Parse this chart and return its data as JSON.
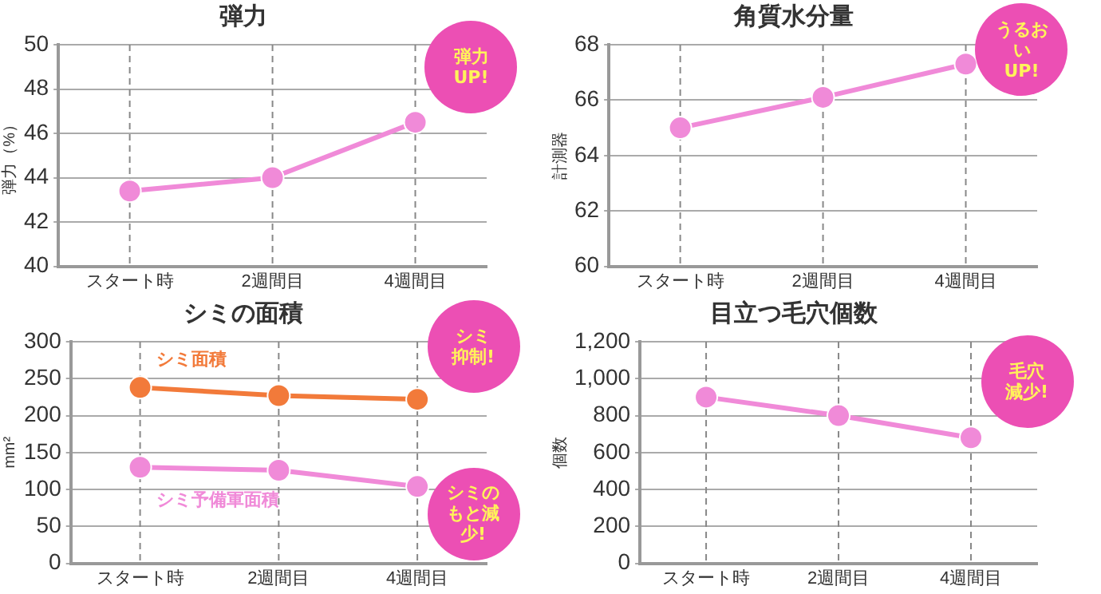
{
  "chart_data": [
    {
      "type": "line",
      "title": "弾力",
      "ylabel": "弾力（%）",
      "categories": [
        "スタート時",
        "2週間目",
        "4週間目"
      ],
      "series": [
        {
          "color": "#f08ad8",
          "values": [
            43.4,
            44.0,
            46.5
          ]
        }
      ],
      "ylim": [
        40,
        50
      ],
      "yticks": [
        40,
        42,
        44,
        46,
        48,
        50
      ],
      "grid": true,
      "marker": "circle",
      "annotations": [
        {
          "text": "弾力\nUP!",
          "x": "4週間目",
          "y": 46.5
        }
      ]
    },
    {
      "type": "line",
      "title": "角質水分量",
      "ylabel": "計測器",
      "categories": [
        "スタート時",
        "2週間目",
        "4週間目"
      ],
      "series": [
        {
          "color": "#f08ad8",
          "values": [
            65.0,
            66.1,
            67.3
          ]
        }
      ],
      "ylim": [
        60,
        68
      ],
      "yticks": [
        60,
        62,
        64,
        66,
        68
      ],
      "grid": true,
      "marker": "circle",
      "annotations": [
        {
          "text": "うるおい\nUP!",
          "x": "4週間目",
          "y": 67.3
        }
      ]
    },
    {
      "type": "line",
      "title": "シミの面積",
      "ylabel": "mm²",
      "categories": [
        "スタート時",
        "2週間目",
        "4週間目"
      ],
      "series": [
        {
          "name": "シミ面積",
          "color": "#f27a3a",
          "values": [
            238,
            227,
            222
          ]
        },
        {
          "name": "シミ予備軍面積",
          "color": "#f08ad8",
          "values": [
            130,
            126,
            104
          ]
        }
      ],
      "ylim": [
        0,
        300
      ],
      "yticks": [
        0,
        50,
        100,
        150,
        200,
        250,
        300
      ],
      "grid": true,
      "marker": "circle",
      "annotations": [
        {
          "text": "シミ抑制!",
          "x": "4週間目",
          "y": 222
        },
        {
          "text": "シミのもと減少!",
          "x": "4週間目",
          "y": 104
        }
      ]
    },
    {
      "type": "line",
      "title": "目立つ毛穴個数",
      "ylabel": "個数",
      "categories": [
        "スタート時",
        "2週間目",
        "4週間目"
      ],
      "series": [
        {
          "color": "#f08ad8",
          "values": [
            900,
            800,
            680
          ]
        }
      ],
      "ylim": [
        0,
        1200
      ],
      "yticks": [
        0,
        200,
        400,
        600,
        {
          "value": 800,
          "label": "800"
        },
        {
          "value": 1000,
          "label": "1,000"
        },
        {
          "value": 1200,
          "label": "1,200"
        }
      ],
      "grid": true,
      "marker": "circle",
      "annotations": [
        {
          "text": "毛穴減少!",
          "x": "4週間目",
          "y": 680
        }
      ]
    }
  ]
}
